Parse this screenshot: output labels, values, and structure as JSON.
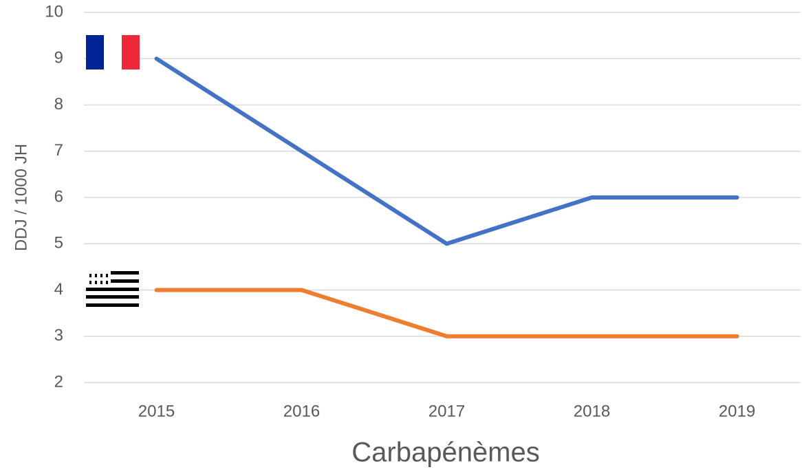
{
  "chart_data": {
    "type": "line",
    "x_label": "Carbapénèmes",
    "y_label": "DDJ / 1000 JH",
    "categories": [
      "2015",
      "2016",
      "2017",
      "2018",
      "2019"
    ],
    "series": [
      {
        "color": "#4472c4",
        "values": [
          9,
          7,
          5,
          6,
          6
        ]
      },
      {
        "color": "#ed7d31",
        "values": [
          4,
          4,
          3,
          3,
          3
        ]
      }
    ],
    "ylim": [
      2,
      10
    ],
    "yticks": [
      2,
      3,
      4,
      5,
      6,
      7,
      8,
      9,
      10
    ],
    "grid": true
  }
}
